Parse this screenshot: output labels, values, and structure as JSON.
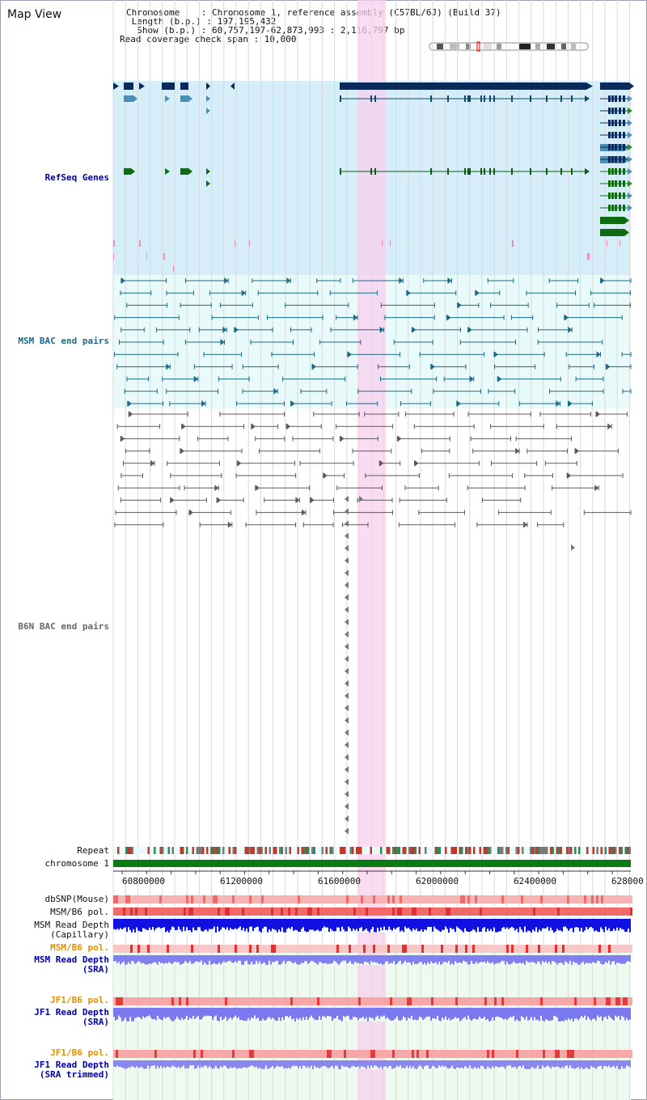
{
  "view_title": "Map View",
  "header": {
    "chromosome": "Chromosome    : Chromosome 1, reference assembly (C57BL/6J) (Build 37)",
    "length": " Length (b.p.) : 197,195,432",
    "show": "  Show (b.p.) : 60,757,197-62,873,993 : 2,116,797 bp",
    "coverage": "Read coverage check span : 10,000"
  },
  "tracks": {
    "refseq": "RefSeq Genes",
    "msm_bac": "MSM BAC end pairs",
    "b6n_bac": "B6N BAC end pairs",
    "repeat": "Repeat",
    "chromosome": "chromosome 1",
    "dbsnp": "dbSNP(Mouse)",
    "msm_b6_pol_1": "MSM/B6 pol.",
    "msm_read_depth_cap": "MSM Read Depth\n(Capillary)",
    "msm_b6_pol_2": "MSM/B6 pol.",
    "msm_read_depth_sra": "MSM Read Depth\n(SRA)",
    "jf1_b6_pol_1": "JF1/B6 pol.",
    "jf1_read_depth_sra": "JF1 Read Depth\n(SRA)",
    "jf1_b6_pol_2": "JF1/B6 pol.",
    "jf1_read_depth_trimmed": "JF1 Read Depth\n(SRA trimmed)"
  },
  "axis_ticks": [
    "60800000",
    "61200000",
    "61600000",
    "62000000",
    "62400000",
    "628000"
  ],
  "colors": {
    "refseq_bg": "#d6eef9",
    "bac_bg": "#e9fafa",
    "highlight": "#f7d0ee",
    "gene_dark": "#0b2a5c",
    "gene_mid": "#4a8fb5",
    "gene_green": "#0f6b12",
    "msm_pair": "#1a6a88",
    "b6n_pair": "#5a5a5a",
    "chrom_bar": "#0a7a12",
    "msm_label": "#0000aa",
    "msm_bac_label": "#1a6a88",
    "b6n_label": "#666666",
    "pol_label": "#e09000",
    "depth_cap": "#1010e0",
    "depth_sra": "#8080ee"
  }
}
